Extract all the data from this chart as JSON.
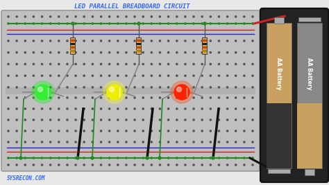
{
  "title": "LED PARALLEL BREADBOARD CIRCUIT",
  "subtitle": "SYSRECON.COM",
  "bg_color": "#e8e8e8",
  "breadboard_bg": "#c0c0c0",
  "breadboard_border": "#999999",
  "dot_dark": "#555555",
  "dot_green": "#228822",
  "rail_red_bg": "#ddbbbb",
  "rail_blue_bg": "#bbbbdd",
  "rail_red_line": "#cc2222",
  "rail_blue_line": "#2222cc",
  "led_green": "#33ee33",
  "led_yellow": "#eeee00",
  "led_red": "#ff2200",
  "resistor_body": "#c8a060",
  "wire_green": "#228822",
  "wire_red": "#cc2222",
  "wire_black": "#111111",
  "wire_gray": "#888888",
  "battery_outer": "#222222",
  "battery_cell1": "#c8a060",
  "battery_cell2": "#888888",
  "battery_divider": "#444444"
}
